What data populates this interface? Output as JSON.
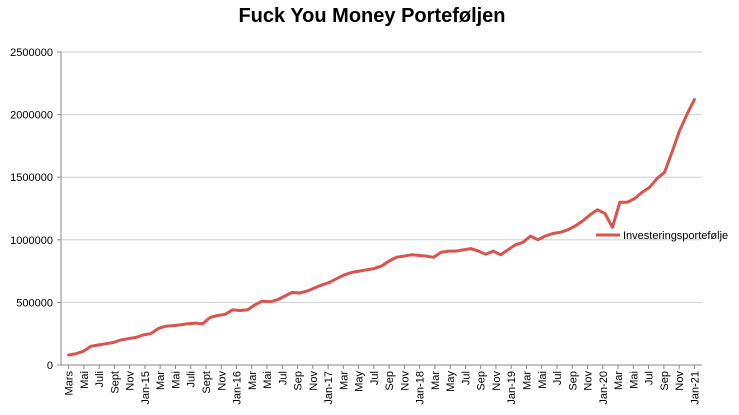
{
  "chart_data": {
    "type": "line",
    "title": "Fuck You Money Porteføljen",
    "xlabel": "",
    "ylabel": "",
    "ylim": [
      0,
      2500000
    ],
    "yticks": [
      "0",
      "500000",
      "1000000",
      "1500000",
      "2000000",
      "2500000"
    ],
    "grid": true,
    "legend_position": "right",
    "x_tick_labels": [
      "Mars",
      "Mai",
      "Juli",
      "Sept",
      "Nov",
      "Jan-15",
      "Mar",
      "Mai",
      "Juli",
      "Sept",
      "Nov",
      "Jan-16",
      "Mar",
      "Mai",
      "Jul",
      "Sep",
      "Nov",
      "Jan-17",
      "Mar",
      "May",
      "Jul",
      "Sep",
      "Nov",
      "Jan-18",
      "Mar",
      "May",
      "Jul",
      "Sep",
      "Nov",
      "Jan-19",
      "Mar",
      "Mai",
      "Jul",
      "Sep",
      "Nov",
      "Jan-20",
      "Mar",
      "Mai",
      "Jul",
      "Sep",
      "Nov",
      "Jan-21"
    ],
    "series": [
      {
        "name": "Investeringsportefølje",
        "color": "#d9534f",
        "values": [
          80000,
          90000,
          110000,
          150000,
          160000,
          170000,
          180000,
          200000,
          210000,
          220000,
          240000,
          250000,
          290000,
          310000,
          315000,
          320000,
          330000,
          335000,
          330000,
          380000,
          395000,
          405000,
          440000,
          435000,
          440000,
          480000,
          510000,
          505000,
          520000,
          550000,
          580000,
          575000,
          590000,
          615000,
          640000,
          660000,
          690000,
          720000,
          740000,
          750000,
          760000,
          770000,
          790000,
          830000,
          860000,
          870000,
          880000,
          875000,
          870000,
          860000,
          900000,
          910000,
          910000,
          920000,
          930000,
          910000,
          885000,
          910000,
          880000,
          920000,
          960000,
          980000,
          1030000,
          1000000,
          1030000,
          1050000,
          1060000,
          1080000,
          1110000,
          1150000,
          1200000,
          1240000,
          1210000,
          1100000,
          1300000,
          1300000,
          1330000,
          1380000,
          1420000,
          1490000,
          1540000,
          1700000,
          1870000,
          2000000,
          2120000
        ]
      }
    ]
  }
}
